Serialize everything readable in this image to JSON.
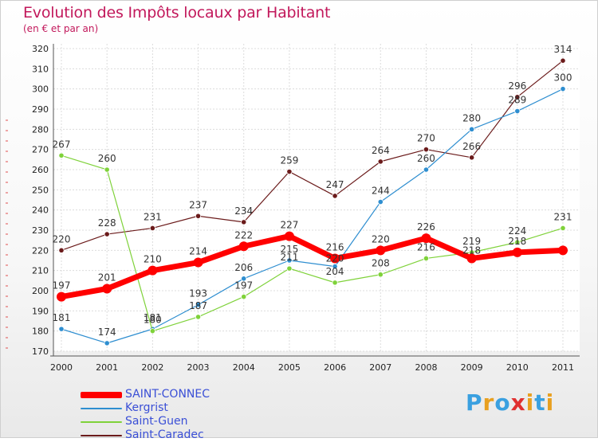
{
  "chart_data": {
    "type": "line",
    "title": "Evolution des Impôts locaux par Habitant",
    "subtitle": "(en € et par an)",
    "xlabel": "",
    "ylabel": "",
    "x": [
      "2000",
      "2001",
      "2002",
      "2003",
      "2004",
      "2005",
      "2006",
      "2007",
      "2008",
      "2009",
      "2010",
      "2011"
    ],
    "ylim": [
      170,
      320
    ],
    "yticks": [
      "170",
      "180",
      "190",
      "200",
      "210",
      "220",
      "230",
      "240",
      "250",
      "260",
      "270",
      "280",
      "290",
      "300",
      "310",
      "320"
    ],
    "grid": true,
    "legend_position": "bottom-left",
    "series": [
      {
        "name": "SAINT-CONNEC",
        "color": "#ff0000",
        "values": [
          197,
          201,
          210,
          214,
          222,
          227,
          216,
          220,
          226,
          216,
          219,
          220
        ],
        "labels": [
          "197",
          "201",
          "210",
          "214",
          "222",
          "227",
          "216",
          "220",
          "226",
          "",
          "",
          ""
        ]
      },
      {
        "name": "Kergrist",
        "color": "#2e8ed0",
        "values": [
          181,
          174,
          181,
          193,
          206,
          215,
          212,
          244,
          260,
          280,
          289,
          300
        ],
        "labels": [
          "181",
          "174",
          "181",
          "193",
          "206",
          "215",
          "",
          "244",
          "260",
          "280",
          "289",
          "300"
        ]
      },
      {
        "name": "Saint-Guen",
        "color": "#7fd23a",
        "values": [
          267,
          260,
          180,
          187,
          197,
          211,
          204,
          208,
          216,
          219,
          224,
          231
        ],
        "labels": [
          "267",
          "260",
          "180",
          "187",
          "197",
          "211",
          "204",
          "208",
          "216",
          "219",
          "224",
          "231"
        ]
      },
      {
        "name": "Saint-Caradec",
        "color": "#6b1b1b",
        "values": [
          220,
          228,
          231,
          237,
          234,
          259,
          247,
          264,
          270,
          266,
          296,
          314
        ],
        "labels": [
          "220",
          "228",
          "231",
          "237",
          "234",
          "259",
          "247",
          "264",
          "270",
          "266",
          "296",
          "314"
        ]
      }
    ],
    "extra_labels": [
      "220",
      "218",
      "218"
    ]
  },
  "logo": {
    "letters": [
      "P",
      "r",
      "o",
      "x",
      "i",
      "t",
      "i"
    ],
    "colors": [
      "#3aa0e0",
      "#e8a020",
      "#3aa0e0",
      "#e03030",
      "#e8a020",
      "#3aa0e0",
      "#e8a020"
    ]
  }
}
